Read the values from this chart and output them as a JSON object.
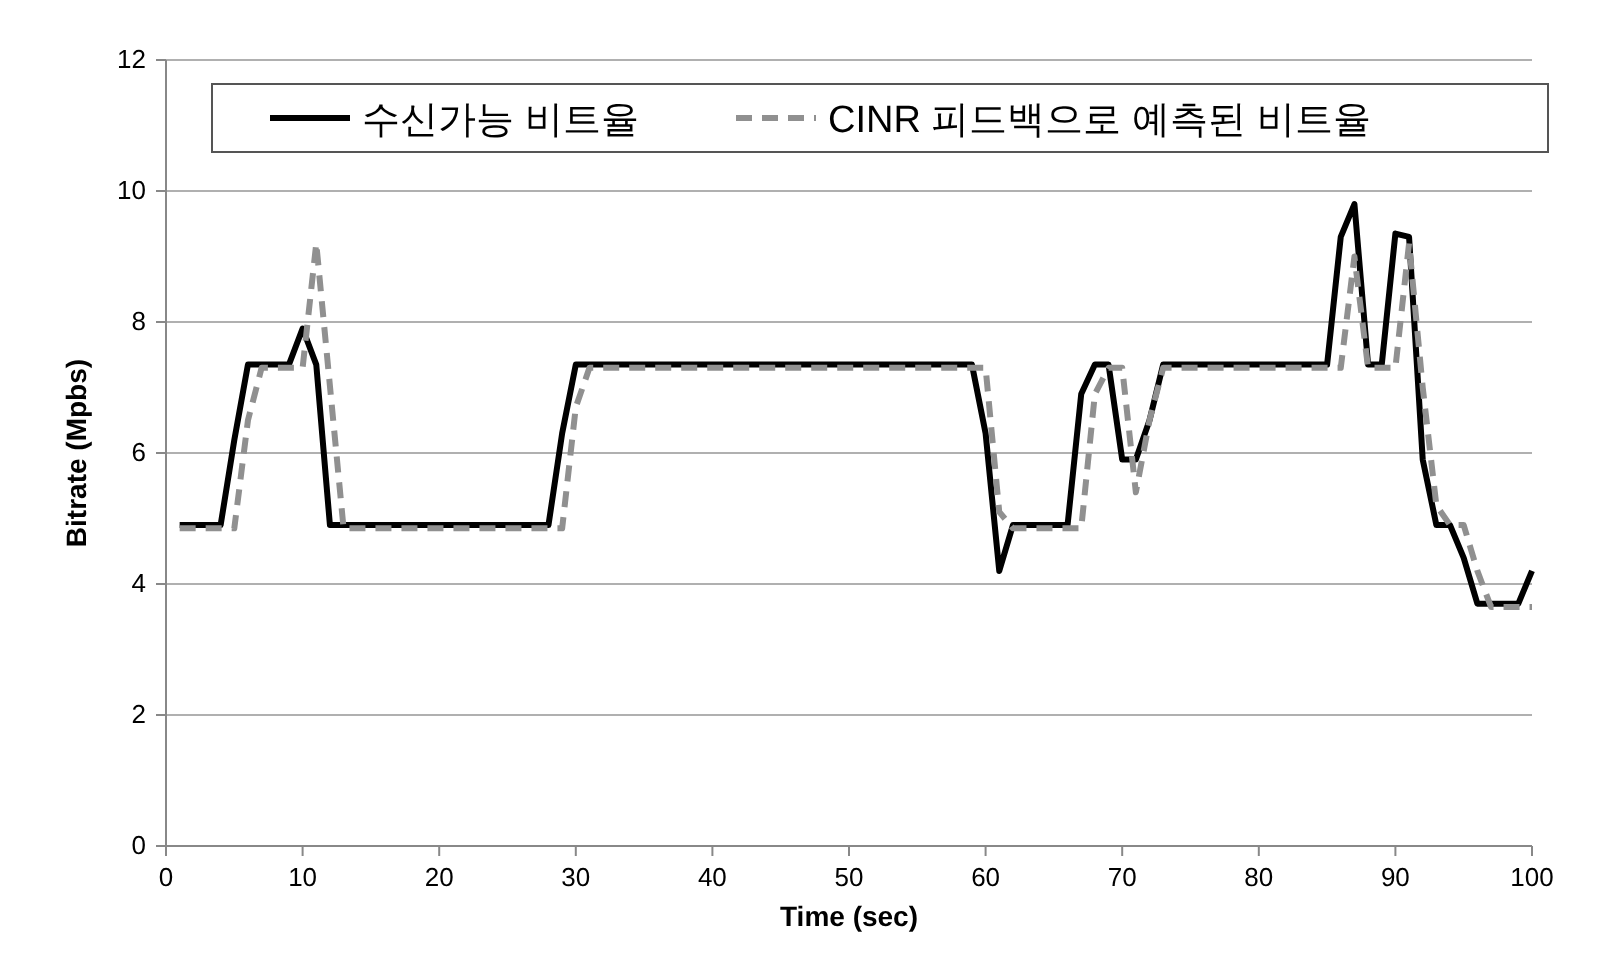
{
  "chart_data": {
    "type": "line",
    "xlabel": "Time (sec)",
    "ylabel": "Bitrate (Mpbs)",
    "xlim": [
      0,
      100
    ],
    "xticks": [
      0,
      10,
      20,
      30,
      40,
      50,
      60,
      70,
      80,
      90,
      100
    ],
    "ylim": [
      0,
      12
    ],
    "yticks": [
      0,
      2,
      4,
      6,
      8,
      10,
      12
    ],
    "grid": "y",
    "legend": "top",
    "marker": "none",
    "series": [
      {
        "name": "수신가능 비트율",
        "color": "#000000",
        "line_style": "solid",
        "x": [
          1,
          4,
          5,
          6,
          9,
          10,
          11,
          12,
          28,
          29,
          30,
          59,
          60,
          61,
          62,
          66,
          67,
          68,
          69,
          70,
          71,
          72,
          73,
          85,
          86,
          87,
          88,
          89,
          90,
          91,
          92,
          93,
          94,
          95,
          96,
          99,
          100
        ],
        "values": [
          4.9,
          4.9,
          6.2,
          7.35,
          7.35,
          7.9,
          7.35,
          4.9,
          4.9,
          6.3,
          7.35,
          7.35,
          6.3,
          4.2,
          4.9,
          4.9,
          6.9,
          7.35,
          7.35,
          5.9,
          5.9,
          6.5,
          7.35,
          7.35,
          9.3,
          9.8,
          7.35,
          7.35,
          9.35,
          9.3,
          5.9,
          4.9,
          4.9,
          4.4,
          3.7,
          3.7,
          4.2
        ]
      },
      {
        "name": "CINR 피드백으로 예측된 비트율",
        "color": "#909090",
        "line_style": "dashed",
        "x": [
          1,
          5,
          6,
          7,
          10,
          11,
          13,
          29,
          30,
          31,
          60,
          61,
          62,
          67,
          68,
          69,
          70,
          71,
          72,
          73,
          86,
          87,
          88,
          90,
          91,
          92,
          93,
          94,
          95,
          96,
          97,
          100
        ],
        "values": [
          4.85,
          4.85,
          6.5,
          7.3,
          7.3,
          9.2,
          4.85,
          4.85,
          6.7,
          7.3,
          7.3,
          5.1,
          4.85,
          4.85,
          6.9,
          7.3,
          7.3,
          5.4,
          6.5,
          7.3,
          7.3,
          9.0,
          7.3,
          7.3,
          9.2,
          7.0,
          5.2,
          4.9,
          4.9,
          4.2,
          3.65,
          3.65
        ]
      }
    ]
  }
}
